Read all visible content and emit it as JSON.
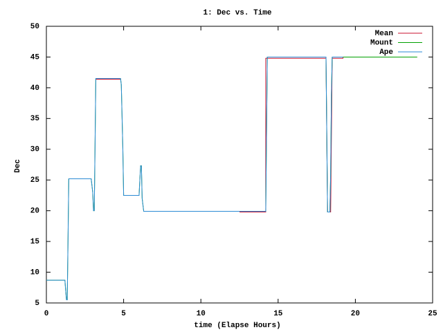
{
  "chart_data": {
    "type": "line",
    "title": "1: Dec vs. Time",
    "x_label": "time (Elapse Hours)",
    "y_label": "Dec",
    "xlim": [
      0,
      25
    ],
    "xticks": [
      0,
      5,
      10,
      15,
      20,
      25
    ],
    "ylim": [
      5,
      50
    ],
    "yticks": [
      5,
      10,
      15,
      20,
      25,
      30,
      35,
      40,
      45,
      50
    ],
    "legend": "top-right",
    "series": [
      {
        "name": "Mean",
        "color": "#c8102e",
        "x": [
          3.2,
          4.8,
          null,
          12.5,
          14.2,
          14.2,
          18.1,
          18.2,
          18.4,
          18.5,
          19.2,
          19.2,
          24
        ],
        "values": [
          41.4,
          41.4,
          null,
          19.8,
          19.8,
          44.8,
          44.8,
          19.8,
          19.8,
          44.8,
          44.8,
          45,
          45
        ]
      },
      {
        "name": "Mount",
        "color": "#00a000",
        "x": [
          0,
          1.2,
          1.25,
          1.3,
          1.35,
          1.4,
          1.45,
          2.9,
          3.0,
          3.05,
          3.1,
          3.15,
          3.2,
          4.8,
          4.85,
          4.95,
          5.0,
          6.0,
          6.05,
          6.1,
          6.15,
          6.2,
          6.3,
          14.2,
          14.25,
          14.3,
          18.1,
          18.15,
          18.2,
          18.35,
          18.4,
          18.45,
          18.5,
          24
        ],
        "values": [
          8.7,
          8.7,
          7,
          5.5,
          5.5,
          15,
          25.2,
          25.2,
          23,
          20,
          20,
          30.5,
          41.5,
          41.5,
          40.5,
          30,
          22.5,
          22.5,
          25,
          27.3,
          27.3,
          22,
          19.9,
          19.9,
          32.5,
          45,
          45,
          32.5,
          19.8,
          19.8,
          26,
          38.8,
          45,
          45
        ]
      },
      {
        "name": "Ape",
        "color": "#2a8ad4",
        "x": [
          0,
          1.2,
          1.25,
          1.3,
          1.35,
          1.4,
          1.45,
          2.9,
          3.0,
          3.05,
          3.1,
          3.15,
          3.2,
          4.8,
          4.85,
          4.95,
          5.0,
          6.0,
          6.05,
          6.1,
          6.15,
          6.2,
          6.3,
          12.5,
          14.2,
          14.25,
          14.3,
          18.1,
          18.15,
          18.2,
          18.35,
          18.4,
          18.45,
          18.5,
          19.2
        ],
        "values": [
          8.7,
          8.7,
          7,
          5.5,
          5.5,
          15,
          25.2,
          25.2,
          23,
          20,
          20,
          30.5,
          41.5,
          41.5,
          40.5,
          30,
          22.5,
          22.5,
          25,
          27.3,
          27.3,
          22,
          19.9,
          19.9,
          19.9,
          32.5,
          45,
          45,
          32.5,
          19.8,
          19.8,
          26,
          38.8,
          45,
          45
        ]
      }
    ]
  }
}
